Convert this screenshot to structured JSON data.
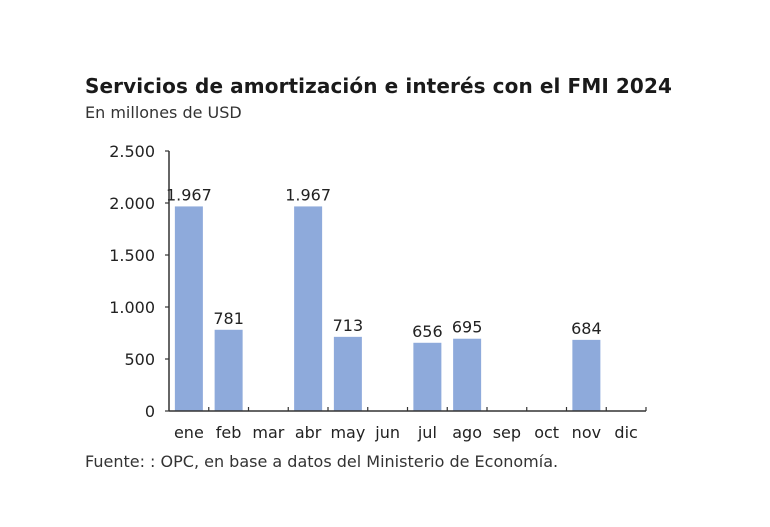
{
  "chart_data": {
    "type": "bar",
    "title": "Servicios de amortización e interés con el FMI 2024",
    "subtitle": "En millones de USD",
    "xlabel": "",
    "ylabel": "",
    "categories": [
      "ene",
      "feb",
      "mar",
      "abr",
      "may",
      "jun",
      "jul",
      "ago",
      "sep",
      "oct",
      "nov",
      "dic"
    ],
    "values": [
      1967,
      781,
      null,
      1967,
      713,
      null,
      656,
      695,
      null,
      null,
      684,
      null
    ],
    "data_labels": [
      "1.967",
      "781",
      "",
      "1.967",
      "713",
      "",
      "656",
      "695",
      "",
      "",
      "684",
      ""
    ],
    "ylim": [
      0,
      2500
    ],
    "yticks": [
      0,
      500,
      1000,
      1500,
      2000,
      2500
    ],
    "ytick_labels": [
      "0",
      "500",
      "1.000",
      "1.500",
      "2.000",
      "2.500"
    ],
    "grid": false,
    "legend": "none",
    "bar_color": "#8eaadb",
    "source": "Fuente: : OPC, en base a datos del Ministerio de Economía."
  }
}
